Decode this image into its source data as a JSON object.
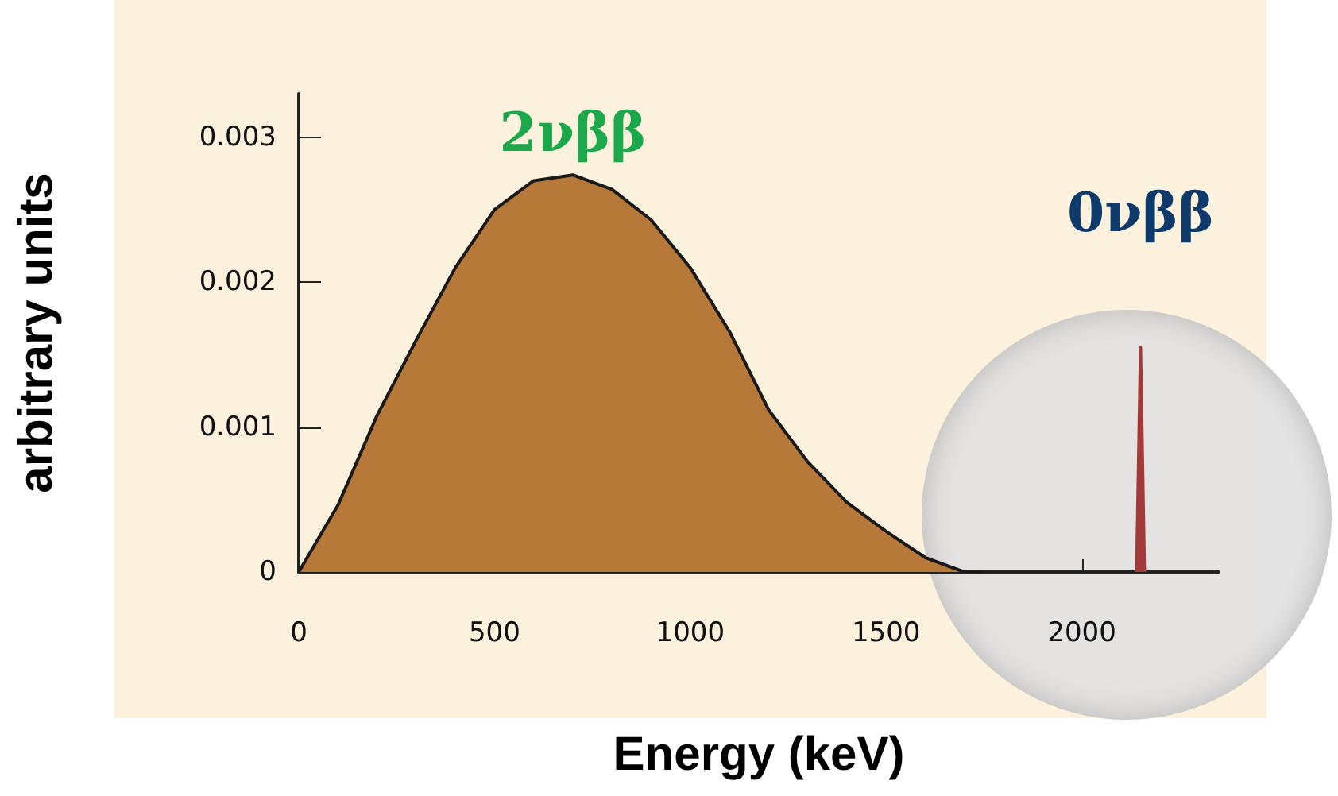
{
  "chart_data": {
    "type": "area",
    "xlabel": "Energy (keV)",
    "ylabel": "arbitrary units",
    "xlim": [
      0,
      2350
    ],
    "xticks": [
      0,
      500,
      1000,
      1500,
      2000
    ],
    "ylim": [
      0,
      0.0033
    ],
    "yticks": [
      0,
      0.001,
      0.002,
      0.003
    ],
    "grid": false,
    "legend": false,
    "marker": "none",
    "series": [
      {
        "name": "2νββ",
        "color": "#b7793a",
        "x": [
          0,
          100,
          200,
          300,
          400,
          500,
          600,
          700,
          800,
          900,
          1000,
          1100,
          1200,
          1300,
          1400,
          1500,
          1600,
          1700,
          1750
        ],
        "values": [
          0,
          0.00046,
          0.00108,
          0.0016,
          0.0021,
          0.0025,
          0.0027,
          0.00274,
          0.00264,
          0.00243,
          0.0021,
          0.00166,
          0.00112,
          0.00076,
          0.00048,
          0.00028,
          0.0001,
          0,
          0
        ]
      },
      {
        "name": "0νββ",
        "color": "#a33a3a",
        "x": [
          2140,
          2150,
          2160
        ],
        "values": [
          0,
          0.00155,
          0
        ]
      }
    ]
  }
}
